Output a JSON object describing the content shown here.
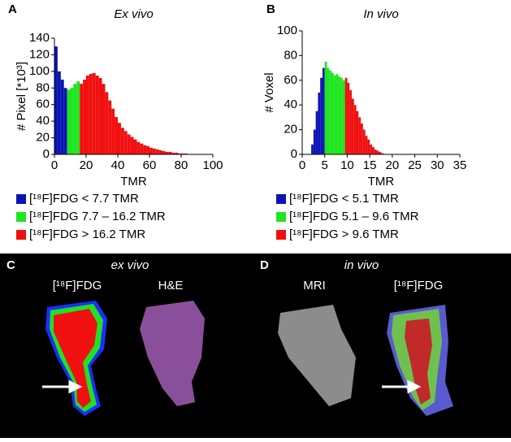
{
  "chart_data": [
    {
      "type": "histogram",
      "panel": "A",
      "title": "Ex vivo",
      "xlabel": "TMR",
      "ylabel": "# Pixel [*10³]",
      "xlim": [
        0,
        100
      ],
      "ylim": [
        0,
        140
      ],
      "xticks": [
        0,
        20,
        40,
        60,
        80,
        100
      ],
      "yticks": [
        0,
        20,
        40,
        60,
        80,
        100,
        120,
        140
      ],
      "series": [
        {
          "name": "[¹⁸F]FDG < 7.7 TMR",
          "color": "#0a14b4",
          "bins": [
            0,
            2,
            4,
            6,
            8
          ],
          "values": [
            130,
            100,
            90,
            80
          ]
        },
        {
          "name": "[¹⁸F]FDG 7.7 – 16.2 TMR",
          "color": "#1ee61e",
          "bins": [
            8,
            10,
            12,
            14,
            16
          ],
          "values": [
            78,
            80,
            85,
            88
          ]
        },
        {
          "name": "[¹⁸F]FDG > 16.2 TMR",
          "color": "#f01010",
          "bins": [
            16,
            18,
            20,
            22,
            24,
            26,
            28,
            30,
            32,
            34,
            36,
            38,
            40,
            42,
            44,
            46,
            48,
            50,
            52,
            54,
            56,
            58,
            60,
            62,
            64,
            66,
            68,
            70,
            72,
            74,
            76,
            78,
            80,
            82,
            84
          ],
          "values": [
            85,
            90,
            95,
            97,
            98,
            95,
            92,
            85,
            75,
            65,
            55,
            45,
            38,
            32,
            28,
            24,
            21,
            18,
            15,
            13,
            11,
            10,
            8,
            7,
            6,
            5,
            4,
            3,
            3,
            2,
            2,
            1,
            1,
            1
          ]
        }
      ]
    },
    {
      "type": "histogram",
      "panel": "B",
      "title": "In vivo",
      "xlabel": "TMR",
      "ylabel": "# Voxel",
      "xlim": [
        0,
        35
      ],
      "ylim": [
        0,
        100
      ],
      "xticks": [
        0,
        5,
        10,
        15,
        20,
        25,
        30,
        35
      ],
      "yticks": [
        0,
        20,
        40,
        60,
        80,
        100
      ],
      "series": [
        {
          "name": "[¹⁸F]FDG < 5.1 TMR",
          "color": "#0a14b4",
          "bins": [
            2,
            2.5,
            3,
            3.5,
            4,
            4.5,
            5
          ],
          "values": [
            8,
            20,
            35,
            50,
            62,
            70
          ]
        },
        {
          "name": "[¹⁸F]FDG 5.1 – 9.6 TMR",
          "color": "#1ee61e",
          "bins": [
            5,
            5.5,
            6,
            6.5,
            7,
            7.5,
            8,
            8.5,
            9,
            9.5
          ],
          "values": [
            75,
            70,
            68,
            66,
            64,
            65,
            63,
            62,
            60
          ]
        },
        {
          "name": "[¹⁸F]FDG > 9.6 TMR",
          "color": "#f01010",
          "bins": [
            9.5,
            10,
            10.5,
            11,
            11.5,
            12,
            12.5,
            13,
            13.5,
            14,
            14.5,
            15,
            15.5,
            16,
            16.5,
            17,
            17.5,
            18
          ],
          "values": [
            62,
            58,
            52,
            45,
            40,
            35,
            30,
            25,
            20,
            15,
            12,
            8,
            6,
            4,
            3,
            2,
            1
          ]
        }
      ]
    }
  ],
  "images": {
    "panel_c": "C",
    "panel_d": "D",
    "c_title": "ex vivo",
    "d_title": "in vivo",
    "c_left": "[¹⁸F]FDG",
    "c_right": "H&E",
    "d_left": "MRI",
    "d_right": "[¹⁸F]FDG"
  }
}
